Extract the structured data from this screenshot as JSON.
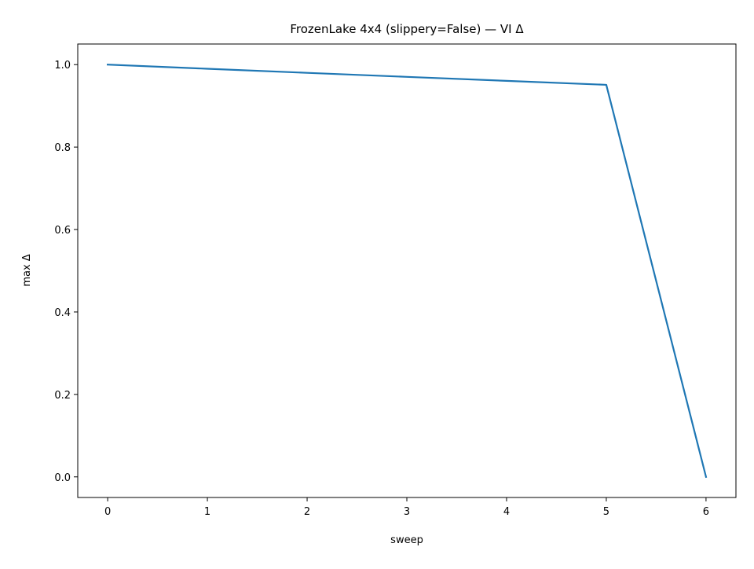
{
  "chart_data": {
    "type": "line",
    "title": "FrozenLake 4x4 (slippery=False) — VI Δ",
    "xlabel": "sweep",
    "ylabel": "max Δ",
    "xlim": [
      -0.3,
      6.3
    ],
    "ylim": [
      -0.05,
      1.05
    ],
    "grid": false,
    "legend": "none",
    "x_ticks": [
      0,
      1,
      2,
      3,
      4,
      5,
      6
    ],
    "x_tick_labels": [
      "0",
      "1",
      "2",
      "3",
      "4",
      "5",
      "6"
    ],
    "y_ticks": [
      0.0,
      0.2,
      0.4,
      0.6,
      0.8,
      1.0
    ],
    "y_tick_labels": [
      "0.0",
      "0.2",
      "0.4",
      "0.6",
      "0.8",
      "1.0"
    ],
    "series": [
      {
        "color": "#1f77b4",
        "x": [
          0,
          1,
          2,
          3,
          4,
          5,
          6
        ],
        "y": [
          1.0,
          0.99,
          0.9801,
          0.9703,
          0.9606,
          0.951,
          0.0
        ]
      }
    ]
  }
}
